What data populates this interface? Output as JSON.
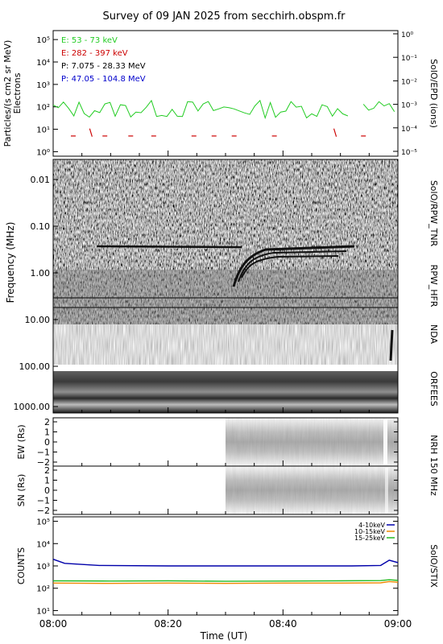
{
  "title": "Survey of 09 JAN 2025 from secchirh.obspm.fr",
  "x_axis": {
    "label": "Time (UT)",
    "ticks": [
      "08:00",
      "08:20",
      "08:40",
      "09:00"
    ]
  },
  "chart_data": [
    {
      "type": "line",
      "panel": "SolO/EPD",
      "left_label": "Particles/(s cm2 sr MeV)",
      "left_sublabel": "Electrons",
      "right_label": "SolO/EPD (ions)",
      "y_scale": "log",
      "y_left_ticks": [
        "10⁰",
        "10¹",
        "10²",
        "10³",
        "10⁴",
        "10⁵"
      ],
      "y_right_ticks": [
        "10⁻⁵",
        "10⁻⁴",
        "10⁻³",
        "10⁻²",
        "10⁻¹",
        "10⁰"
      ],
      "legend": [
        {
          "name": "E: 53 - 73 keV",
          "color": "#22cc22"
        },
        {
          "name": "E: 282 - 397 keV",
          "color": "#cc0000"
        },
        {
          "name": "P: 7.075 - 28.33 MeV",
          "color": "#000000"
        },
        {
          "name": "P: 47.05 - 104.8 MeV",
          "color": "#0000cc"
        }
      ],
      "series": [
        {
          "name": "E: 53 - 73 keV",
          "color": "#22cc22",
          "approx_log10_range": [
            1.5,
            2.3
          ]
        },
        {
          "name": "E: 282 - 397 keV",
          "color": "#cc0000",
          "values": [
            [
              3.5,
              0.7
            ],
            [
              6.5,
              0.85
            ],
            [
              9,
              0.7
            ],
            [
              13.5,
              0.7
            ],
            [
              17.5,
              0.7
            ],
            [
              24.5,
              0.7
            ],
            [
              28,
              0.7
            ],
            [
              31.5,
              0.7
            ],
            [
              38.5,
              0.7
            ],
            [
              49,
              0.85
            ],
            [
              54,
              0.7
            ]
          ]
        }
      ]
    },
    {
      "type": "heatmap",
      "panel": "SolO/RPW_TNR",
      "ylabel": "Frequency (MHz)",
      "y_ticks": [
        "0.01",
        "0.10",
        "1.00",
        "10.00",
        "100.00",
        "1000.00"
      ],
      "right_labels": [
        "SolO/RPW_TNR",
        "RPW_HFR",
        "NDA",
        "ORFEES"
      ]
    },
    {
      "type": "heatmap",
      "panel": "NRH 150 MHz EW",
      "ylabel": "EW (Rs)",
      "y_ticks": [
        "2",
        "1",
        "0",
        "−1",
        "−2"
      ],
      "right_label": "NRH 150 MHz",
      "data_start": "08:30"
    },
    {
      "type": "heatmap",
      "panel": "NRH 150 MHz SN",
      "ylabel": "SN (Rs)",
      "y_ticks": [
        "2",
        "1",
        "0",
        "−1",
        "−2"
      ],
      "data_start": "08:30"
    },
    {
      "type": "line",
      "panel": "SolO/STIX",
      "ylabel": "COUNTS",
      "right_label": "SolO/STIX",
      "y_scale": "log",
      "y_ticks": [
        "10¹",
        "10²",
        "10³",
        "10⁴",
        "10⁵"
      ],
      "series": [
        {
          "name": "4-10keV",
          "color": "#0000aa",
          "x": [
            0,
            2,
            8,
            20,
            30,
            40,
            52,
            57,
            58.5,
            60
          ],
          "values": [
            2000,
            1300,
            1050,
            1000,
            1000,
            1000,
            1000,
            1050,
            1800,
            1400
          ]
        },
        {
          "name": "10-15keV",
          "color": "#ee8800",
          "x": [
            0,
            10,
            20,
            30,
            40,
            50,
            57,
            58.5,
            60
          ],
          "values": [
            170,
            165,
            170,
            165,
            170,
            170,
            175,
            200,
            185
          ]
        },
        {
          "name": "15-25keV",
          "color": "#22bb22",
          "x": [
            0,
            10,
            20,
            30,
            40,
            50,
            57,
            58.5,
            60
          ],
          "values": [
            215,
            210,
            215,
            205,
            210,
            215,
            220,
            240,
            225
          ]
        }
      ]
    }
  ]
}
